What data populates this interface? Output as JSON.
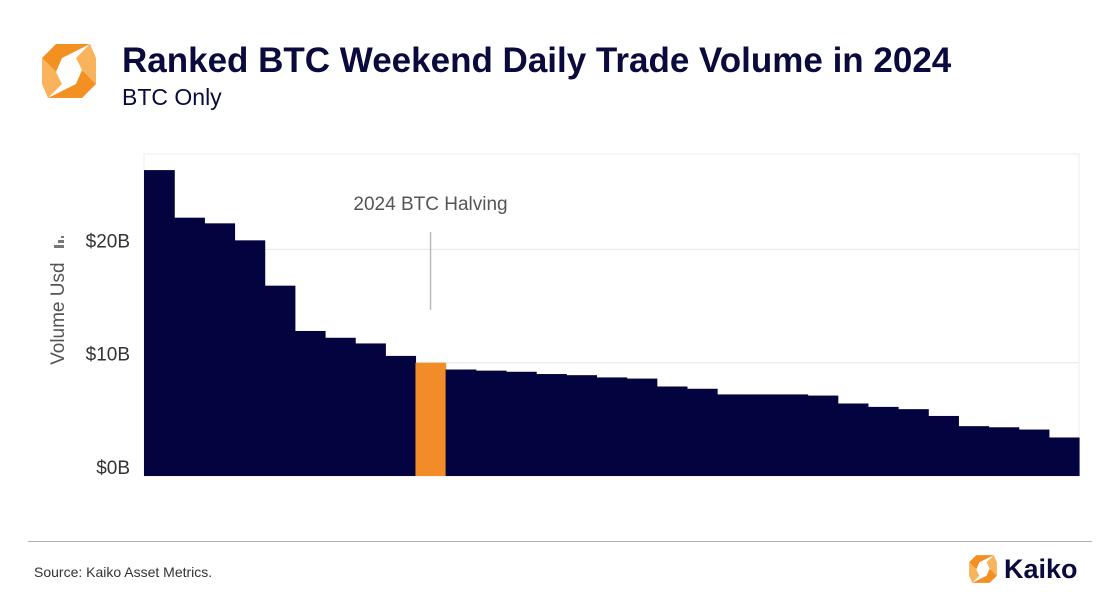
{
  "header": {
    "title": "Ranked BTC Weekend Daily Trade Volume in 2024",
    "subtitle": "BTC Only",
    "logo_icon": "kaiko-logo-icon"
  },
  "colors": {
    "bar": "#03033f",
    "highlight": "#f28c28",
    "title": "#0a0a3c",
    "logo_orange": "#f39022"
  },
  "chart_data": {
    "type": "bar",
    "title": "Ranked BTC Weekend Daily Trade Volume in 2024",
    "subtitle": "BTC Only",
    "xlabel": "",
    "ylabel": "Volume Usd",
    "ylim": [
      0,
      28
    ],
    "yunit": "billion USD",
    "yticks": [
      {
        "value": 0,
        "label": "$0B"
      },
      {
        "value": 10,
        "label": "$10B"
      },
      {
        "value": 20,
        "label": "$20B"
      }
    ],
    "grid": true,
    "values": [
      27.0,
      22.8,
      22.3,
      20.8,
      16.8,
      12.8,
      12.2,
      11.7,
      10.6,
      10.0,
      9.4,
      9.3,
      9.2,
      9.0,
      8.9,
      8.7,
      8.6,
      7.9,
      7.7,
      7.2,
      7.2,
      7.2,
      7.1,
      6.4,
      6.1,
      5.9,
      5.3,
      4.4,
      4.3,
      4.1,
      3.4
    ],
    "highlight_index": 9,
    "annotations": [
      {
        "text": "2024 BTC Halving",
        "target_index": 9
      }
    ]
  },
  "footer": {
    "source": "Source: Kaiko Asset Metrics.",
    "brand": "Kaiko",
    "brand_icon": "kaiko-logo-icon"
  }
}
